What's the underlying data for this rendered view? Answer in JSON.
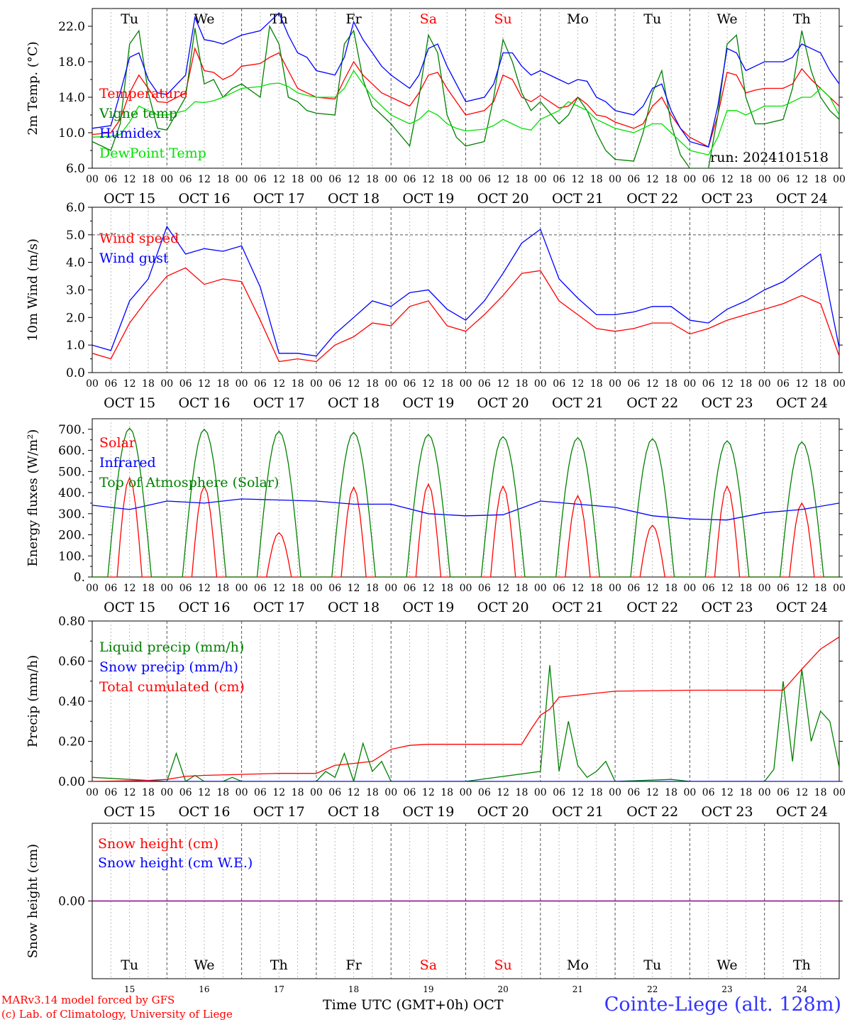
{
  "footer": {
    "model": "MARv3.14 model forced by GFS",
    "lab": "(c) Lab. of Climatology, University of Liege",
    "time_label": "Time UTC (GMT+0h)",
    "month": "OCT",
    "station": "Cointe-Liege (alt. 128m)"
  },
  "run_label": "run: 2024101518",
  "days": [
    "Tu",
    "We",
    "Th",
    "Fr",
    "Sa",
    "Su",
    "Mo",
    "Tu",
    "We",
    "Th"
  ],
  "weekend_days": [
    4,
    5
  ],
  "date_labels": [
    "OCT 15",
    "OCT 16",
    "OCT 17",
    "OCT 18",
    "OCT 19",
    "OCT 20",
    "OCT 21",
    "OCT 22",
    "OCT 23",
    "OCT 24"
  ],
  "day_numbers": [
    "15",
    "16",
    "17",
    "18",
    "19",
    "20",
    "21",
    "22",
    "23",
    "24"
  ],
  "hour_labels": [
    "00",
    "06",
    "12",
    "18"
  ],
  "colors": {
    "red": "#ff0000",
    "green": "#008000",
    "blue": "#0000ff",
    "lightgreen": "#00e000",
    "purple": "#800080",
    "weekend": "#ff0000"
  },
  "chart_data": [
    {
      "type": "line",
      "ylabel": "2m Temp. (°C)",
      "ylim": [
        6,
        24
      ],
      "yticks": [
        "6.0",
        "10.0",
        "14.0",
        "18.0",
        "22.0"
      ],
      "grid": false,
      "x_hours": [
        0,
        6,
        9,
        12,
        15,
        18,
        21,
        24,
        30,
        33,
        36,
        39,
        42,
        45,
        48,
        54,
        57,
        60,
        63,
        66,
        69,
        72,
        78,
        81,
        84,
        87,
        90,
        93,
        96,
        102,
        105,
        108,
        111,
        114,
        117,
        120,
        126,
        129,
        132,
        135,
        138,
        141,
        144,
        150,
        153,
        156,
        159,
        162,
        165,
        168,
        174,
        177,
        180,
        183,
        186,
        189,
        192,
        198,
        201,
        204,
        207,
        210,
        213,
        216,
        222,
        225,
        228,
        231,
        234,
        237,
        240
      ],
      "series": [
        {
          "name": "Temperature",
          "color": "red",
          "values": [
            9.8,
            10.0,
            11.5,
            14.5,
            16.5,
            15.0,
            13.5,
            13.4,
            14.5,
            19.5,
            17.0,
            16.8,
            16.0,
            16.5,
            17.5,
            17.8,
            18.5,
            19.0,
            17.0,
            15.0,
            14.5,
            14.0,
            13.8,
            16.0,
            18.0,
            16.5,
            15.5,
            14.5,
            14.0,
            13.0,
            14.5,
            16.5,
            16.8,
            15.0,
            13.5,
            12.0,
            12.5,
            13.5,
            16.5,
            16.0,
            14.0,
            13.5,
            14.2,
            12.8,
            13.0,
            14.0,
            13.2,
            12.0,
            11.8,
            11.2,
            10.5,
            11.0,
            13.0,
            14.0,
            12.0,
            10.5,
            9.5,
            8.4,
            12.0,
            16.8,
            16.5,
            14.5,
            14.8,
            15.0,
            15.0,
            15.5,
            17.2,
            16.0,
            15.0,
            14.0,
            13.0
          ]
        },
        {
          "name": "Vigne temp",
          "color": "green",
          "values": [
            9.0,
            8.0,
            11.0,
            20.0,
            21.5,
            14.5,
            10.5,
            10.3,
            14.0,
            21.8,
            15.5,
            16.0,
            14.0,
            15.0,
            15.5,
            14.0,
            22.0,
            20.0,
            14.0,
            13.5,
            12.5,
            12.2,
            12.0,
            20.0,
            21.5,
            16.0,
            13.0,
            12.0,
            11.0,
            8.5,
            14.0,
            21.0,
            19.0,
            12.0,
            9.5,
            8.5,
            9.0,
            14.0,
            20.5,
            18.0,
            14.5,
            12.5,
            13.5,
            11.0,
            12.0,
            14.0,
            12.5,
            10.0,
            8.0,
            7.0,
            6.8,
            10.0,
            14.5,
            17.0,
            11.0,
            7.5,
            6.0,
            6.0,
            12.0,
            20.0,
            21.0,
            14.0,
            11.0,
            11.0,
            11.5,
            15.0,
            21.5,
            17.0,
            14.0,
            12.5,
            11.5
          ]
        },
        {
          "name": "Humidex",
          "color": "blue",
          "values": [
            10.5,
            10.8,
            14.5,
            18.5,
            19.0,
            16.0,
            14.5,
            14.3,
            16.5,
            23.0,
            20.5,
            20.3,
            20.0,
            20.5,
            21.0,
            21.5,
            22.5,
            23.5,
            21.0,
            19.0,
            18.5,
            17.0,
            16.5,
            18.5,
            22.5,
            20.5,
            19.0,
            17.5,
            16.5,
            15.0,
            16.5,
            19.5,
            20.0,
            17.5,
            15.5,
            13.5,
            14.0,
            15.5,
            19.0,
            19.0,
            17.5,
            16.5,
            17.0,
            16.0,
            15.5,
            16.0,
            15.8,
            14.0,
            13.5,
            12.5,
            12.0,
            13.0,
            15.0,
            15.5,
            12.5,
            10.5,
            9.0,
            8.4,
            13.0,
            19.5,
            19.0,
            17.0,
            17.5,
            18.0,
            18.0,
            18.5,
            20.0,
            19.5,
            19.0,
            17.0,
            15.5
          ]
        },
        {
          "name": "DewPoint Temp",
          "color": "lightgreen",
          "values": [
            9.5,
            9.6,
            9.8,
            11.2,
            13.0,
            12.5,
            12.0,
            12.0,
            12.5,
            13.5,
            13.4,
            13.6,
            14.0,
            14.5,
            15.0,
            15.2,
            15.5,
            15.6,
            15.2,
            14.5,
            14.2,
            14.0,
            14.0,
            15.0,
            17.0,
            15.5,
            14.0,
            13.0,
            12.0,
            11.0,
            11.5,
            12.5,
            12.0,
            11.0,
            10.5,
            10.2,
            10.4,
            10.8,
            11.5,
            11.0,
            10.5,
            10.3,
            11.5,
            12.5,
            13.5,
            13.0,
            12.5,
            11.5,
            11.0,
            10.5,
            10.0,
            10.5,
            11.0,
            11.0,
            10.0,
            9.0,
            8.0,
            7.5,
            9.5,
            12.5,
            12.5,
            12.0,
            12.5,
            13.0,
            13.0,
            13.5,
            14.0,
            14.0,
            15.0,
            14.0,
            12.0
          ]
        }
      ]
    },
    {
      "type": "line",
      "ylabel": "10m Wind (m/s)",
      "ylim": [
        0,
        6
      ],
      "yticks": [
        "0.0",
        "1.0",
        "2.0",
        "3.0",
        "4.0",
        "5.0",
        "6.0"
      ],
      "dashed_line": 5.0,
      "x_hours": [
        0,
        6,
        12,
        18,
        24,
        30,
        36,
        42,
        48,
        54,
        60,
        66,
        72,
        78,
        84,
        90,
        96,
        102,
        108,
        114,
        120,
        126,
        132,
        138,
        144,
        150,
        156,
        162,
        168,
        174,
        180,
        186,
        192,
        198,
        204,
        210,
        216,
        222,
        228,
        234,
        240
      ],
      "series": [
        {
          "name": "Wind speed",
          "color": "red",
          "values": [
            0.7,
            0.5,
            1.8,
            2.7,
            3.5,
            3.8,
            3.2,
            3.4,
            3.3,
            1.9,
            0.4,
            0.5,
            0.4,
            1.0,
            1.3,
            1.8,
            1.7,
            2.4,
            2.6,
            1.7,
            1.5,
            2.1,
            2.8,
            3.6,
            3.7,
            2.6,
            2.1,
            1.6,
            1.5,
            1.6,
            1.8,
            1.8,
            1.4,
            1.6,
            1.9,
            2.1,
            2.3,
            2.5,
            2.8,
            2.5,
            0.6
          ]
        },
        {
          "name": "Wind gust",
          "color": "blue",
          "values": [
            1.0,
            0.8,
            2.6,
            3.4,
            5.3,
            4.3,
            4.5,
            4.4,
            4.6,
            3.1,
            0.7,
            0.7,
            0.6,
            1.4,
            2.0,
            2.6,
            2.4,
            2.9,
            3.0,
            2.3,
            1.9,
            2.6,
            3.6,
            4.7,
            5.2,
            3.4,
            2.7,
            2.1,
            2.1,
            2.2,
            2.4,
            2.4,
            1.9,
            1.8,
            2.3,
            2.6,
            3.0,
            3.3,
            3.8,
            4.3,
            0.9
          ]
        }
      ]
    },
    {
      "type": "line",
      "ylabel": "Energy fluxes (W/m²)",
      "ylim": [
        0,
        750
      ],
      "yticks": [
        "0.",
        "100.",
        "200.",
        "300.",
        "400.",
        "500.",
        "600.",
        "700."
      ],
      "series": [
        {
          "name": "Solar",
          "color": "red",
          "peaks": [
            470,
            430,
            210,
            425,
            440,
            430,
            385,
            245,
            430,
            350
          ]
        },
        {
          "name": "Infrared",
          "color": "blue",
          "x_hours": [
            0,
            12,
            24,
            36,
            48,
            60,
            72,
            84,
            96,
            108,
            120,
            132,
            144,
            156,
            168,
            180,
            192,
            204,
            216,
            228,
            240
          ],
          "values": [
            340,
            320,
            360,
            350,
            370,
            365,
            360,
            345,
            345,
            300,
            290,
            295,
            360,
            345,
            330,
            290,
            275,
            270,
            305,
            320,
            350
          ]
        },
        {
          "name": "Top of Atmosphere (Solar)",
          "color": "green",
          "peaks": [
            705,
            700,
            690,
            685,
            675,
            665,
            660,
            655,
            645,
            640
          ]
        }
      ]
    },
    {
      "type": "line",
      "ylabel": "Precip (mm/h)",
      "ylim": [
        0,
        0.8
      ],
      "yticks": [
        "0.00",
        "0.20",
        "0.40",
        "0.60",
        "0.80"
      ],
      "series": [
        {
          "name": "Liquid precip (mm/h)",
          "color": "green",
          "x_hours": [
            0,
            24,
            27,
            30,
            33,
            36,
            39,
            42,
            45,
            48,
            54,
            72,
            75,
            78,
            81,
            84,
            87,
            90,
            93,
            96,
            120,
            144,
            147,
            150,
            153,
            156,
            159,
            162,
            165,
            168,
            186,
            192,
            216,
            219,
            222,
            225,
            228,
            231,
            234,
            237,
            240
          ],
          "values": [
            0.02,
            0.0,
            0.14,
            0.0,
            0.03,
            0.0,
            0.0,
            0.0,
            0.02,
            0.0,
            0.0,
            0.0,
            0.05,
            0.02,
            0.14,
            0.0,
            0.19,
            0.05,
            0.1,
            0.0,
            0.0,
            0.05,
            0.58,
            0.05,
            0.3,
            0.08,
            0.02,
            0.05,
            0.1,
            0.0,
            0.01,
            0.0,
            0.0,
            0.06,
            0.5,
            0.1,
            0.56,
            0.2,
            0.35,
            0.3,
            0.07
          ]
        },
        {
          "name": "Snow precip (mm/h)",
          "color": "blue",
          "x_hours": [
            0,
            240
          ],
          "values": [
            0.0,
            0.0
          ]
        },
        {
          "name": "Total cumulated (cm)",
          "color": "red",
          "x_hours": [
            0,
            18,
            24,
            30,
            36,
            48,
            60,
            72,
            78,
            84,
            90,
            96,
            102,
            108,
            120,
            138,
            141,
            144,
            147,
            150,
            156,
            168,
            192,
            216,
            222,
            228,
            234,
            240
          ],
          "values": [
            0.0,
            0.005,
            0.01,
            0.025,
            0.03,
            0.035,
            0.04,
            0.04,
            0.08,
            0.09,
            0.1,
            0.16,
            0.18,
            0.185,
            0.185,
            0.185,
            0.26,
            0.33,
            0.36,
            0.42,
            0.43,
            0.45,
            0.455,
            0.455,
            0.455,
            0.56,
            0.66,
            0.72
          ]
        }
      ]
    },
    {
      "type": "line",
      "ylabel": "Snow height (cm)",
      "ylim": [
        -1,
        1
      ],
      "yticks": [
        "0.00"
      ],
      "series": [
        {
          "name": "Snow height (cm)",
          "color": "red",
          "x_hours": [
            0,
            240
          ],
          "values": [
            0,
            0
          ]
        },
        {
          "name": "Snow height (cm W.E.)",
          "color": "blue",
          "x_hours": [
            0,
            240
          ],
          "values": [
            0,
            0
          ]
        }
      ]
    }
  ]
}
